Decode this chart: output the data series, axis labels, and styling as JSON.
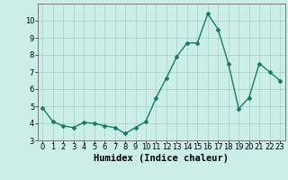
{
  "x": [
    0,
    1,
    2,
    3,
    4,
    5,
    6,
    7,
    8,
    9,
    10,
    11,
    12,
    13,
    14,
    15,
    16,
    17,
    18,
    19,
    20,
    21,
    22,
    23
  ],
  "y": [
    4.9,
    4.1,
    3.85,
    3.75,
    4.05,
    4.0,
    3.85,
    3.75,
    3.4,
    3.75,
    4.1,
    5.5,
    6.65,
    7.9,
    8.7,
    8.7,
    10.4,
    9.5,
    7.5,
    4.85,
    5.5,
    7.5,
    7.0,
    6.5
  ],
  "line_color": "#1a7a6a",
  "marker": "D",
  "marker_size": 2.0,
  "linewidth": 1.0,
  "bg_color": "#cceee8",
  "grid_color": "#aad4cc",
  "xlabel": "Humidex (Indice chaleur)",
  "ylim": [
    3,
    11
  ],
  "xlim": [
    -0.5,
    23.5
  ],
  "yticks": [
    3,
    4,
    5,
    6,
    7,
    8,
    9,
    10
  ],
  "xticks": [
    0,
    1,
    2,
    3,
    4,
    5,
    6,
    7,
    8,
    9,
    10,
    11,
    12,
    13,
    14,
    15,
    16,
    17,
    18,
    19,
    20,
    21,
    22,
    23
  ],
  "tick_fontsize": 6,
  "xlabel_fontsize": 7.5
}
